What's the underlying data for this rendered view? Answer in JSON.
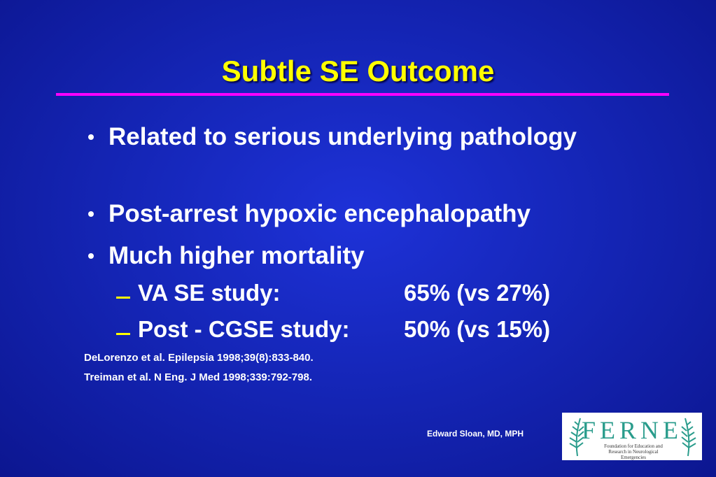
{
  "slide": {
    "title": "Subtle SE Outcome",
    "bullets": [
      "Related to serious underlying pathology",
      "Post-arrest hypoxic encephalopathy",
      "Much higher mortality"
    ],
    "sub_bullets": [
      {
        "label": "VA SE study:",
        "value": "65% (vs 27%)"
      },
      {
        "label": "Post - CGSE study:",
        "value": "50% (vs 15%)"
      }
    ],
    "references": [
      "DeLorenzo et al. Epilepsia 1998;39(8):833-840.",
      "Treiman et al. N Eng. J Med 1998;339:792-798."
    ],
    "author": "Edward Sloan, MD, MPH",
    "logo": {
      "letters": "FERNE",
      "caption": "Foundation for Education and Research in Neurological Emergencies"
    }
  }
}
